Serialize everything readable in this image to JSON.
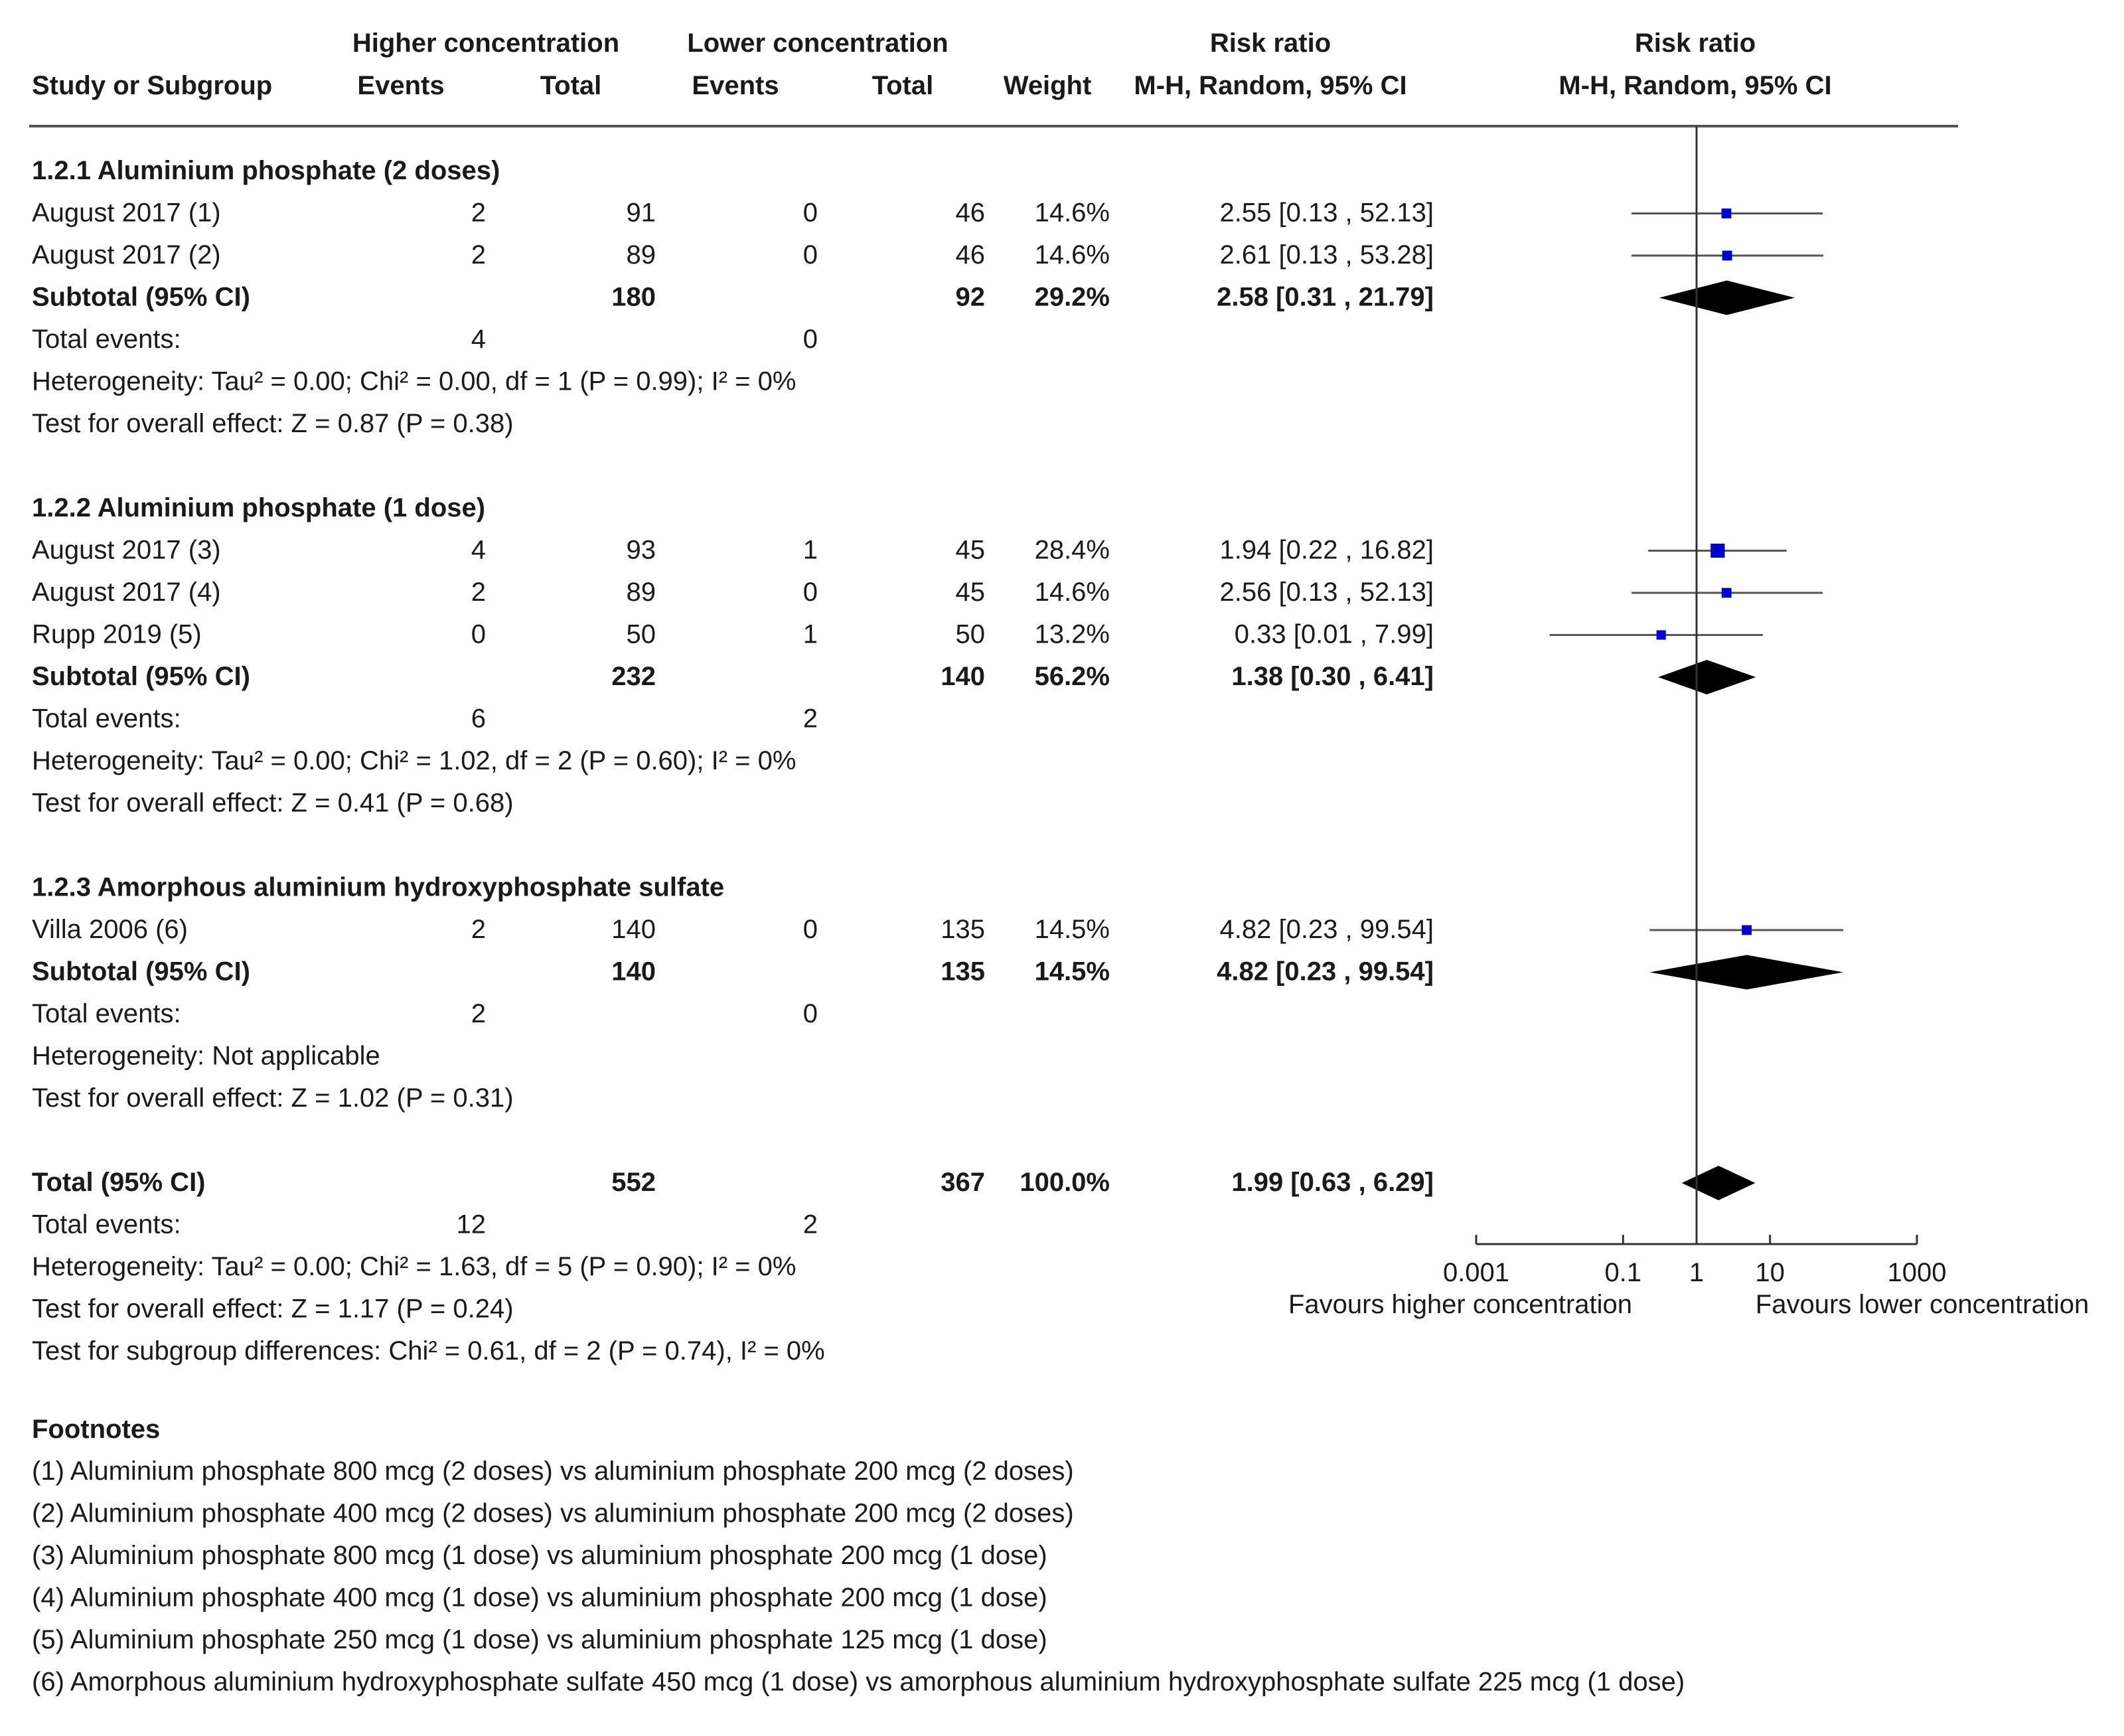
{
  "headers": {
    "study": "Study or Subgroup",
    "group1": "Higher concentration",
    "group2": "Lower concentration",
    "events": "Events",
    "total": "Total",
    "weight": "Weight",
    "rr": "Risk ratio",
    "method": "M-H, Random, 95% CI"
  },
  "rows": [
    {
      "kind": "heading",
      "label": "1.2.1 Aluminium phosphate (2 doses)"
    },
    {
      "kind": "study",
      "label": "August 2017 (1)",
      "e1": "2",
      "t1": "91",
      "e2": "0",
      "t2": "46",
      "weight": "14.6%",
      "ci": "2.55 [0.13 , 52.13]",
      "est": 2.55,
      "lo": 0.13,
      "hi": 52.13,
      "w": 14.6
    },
    {
      "kind": "study",
      "label": "August 2017 (2)",
      "e1": "2",
      "t1": "89",
      "e2": "0",
      "t2": "46",
      "weight": "14.6%",
      "ci": "2.61 [0.13 , 53.28]",
      "est": 2.61,
      "lo": 0.13,
      "hi": 53.28,
      "w": 14.6
    },
    {
      "kind": "subtotal",
      "label": "Subtotal (95% CI)",
      "t1": "180",
      "t2": "92",
      "weight": "29.2%",
      "ci": "2.58 [0.31 , 21.79]",
      "est": 2.58,
      "lo": 0.31,
      "hi": 21.79
    },
    {
      "kind": "events",
      "label": "Total events:",
      "e1": "4",
      "e2": "0"
    },
    {
      "kind": "text",
      "label": "Heterogeneity: Tau² = 0.00; Chi² = 0.00, df = 1 (P = 0.99); I² = 0%"
    },
    {
      "kind": "text",
      "label": "Test for overall effect: Z = 0.87 (P = 0.38)"
    },
    {
      "kind": "blank"
    },
    {
      "kind": "heading",
      "label": "1.2.2 Aluminium phosphate (1 dose)"
    },
    {
      "kind": "study",
      "label": "August 2017 (3)",
      "e1": "4",
      "t1": "93",
      "e2": "1",
      "t2": "45",
      "weight": "28.4%",
      "ci": "1.94 [0.22 , 16.82]",
      "est": 1.94,
      "lo": 0.22,
      "hi": 16.82,
      "w": 28.4
    },
    {
      "kind": "study",
      "label": "August 2017 (4)",
      "e1": "2",
      "t1": "89",
      "e2": "0",
      "t2": "45",
      "weight": "14.6%",
      "ci": "2.56 [0.13 , 52.13]",
      "est": 2.56,
      "lo": 0.13,
      "hi": 52.13,
      "w": 14.6
    },
    {
      "kind": "study",
      "label": "Rupp 2019 (5)",
      "e1": "0",
      "t1": "50",
      "e2": "1",
      "t2": "50",
      "weight": "13.2%",
      "ci": "0.33 [0.01 , 7.99]",
      "est": 0.33,
      "lo": 0.01,
      "hi": 7.99,
      "w": 13.2
    },
    {
      "kind": "subtotal",
      "label": "Subtotal (95% CI)",
      "t1": "232",
      "t2": "140",
      "weight": "56.2%",
      "ci": "1.38 [0.30 , 6.41]",
      "est": 1.38,
      "lo": 0.3,
      "hi": 6.41
    },
    {
      "kind": "events",
      "label": "Total events:",
      "e1": "6",
      "e2": "2"
    },
    {
      "kind": "text",
      "label": "Heterogeneity: Tau² = 0.00; Chi² = 1.02, df = 2 (P = 0.60); I² = 0%"
    },
    {
      "kind": "text",
      "label": "Test for overall effect: Z = 0.41 (P = 0.68)"
    },
    {
      "kind": "blank"
    },
    {
      "kind": "heading",
      "label": "1.2.3 Amorphous aluminium hydroxyphosphate sulfate"
    },
    {
      "kind": "study",
      "label": "Villa 2006 (6)",
      "e1": "2",
      "t1": "140",
      "e2": "0",
      "t2": "135",
      "weight": "14.5%",
      "ci": "4.82 [0.23 , 99.54]",
      "est": 4.82,
      "lo": 0.23,
      "hi": 99.54,
      "w": 14.5
    },
    {
      "kind": "subtotal",
      "label": "Subtotal (95% CI)",
      "t1": "140",
      "t2": "135",
      "weight": "14.5%",
      "ci": "4.82 [0.23 , 99.54]",
      "est": 4.82,
      "lo": 0.23,
      "hi": 99.54
    },
    {
      "kind": "events",
      "label": "Total events:",
      "e1": "2",
      "e2": "0"
    },
    {
      "kind": "text",
      "label": "Heterogeneity: Not applicable"
    },
    {
      "kind": "text",
      "label": "Test for overall effect: Z = 1.02 (P = 0.31)"
    },
    {
      "kind": "blank"
    },
    {
      "kind": "subtotal",
      "label": "Total (95% CI)",
      "t1": "552",
      "t2": "367",
      "weight": "100.0%",
      "ci": "1.99 [0.63 , 6.29]",
      "est": 1.99,
      "lo": 0.63,
      "hi": 6.29
    },
    {
      "kind": "events",
      "label": "Total events:",
      "e1": "12",
      "e2": "2"
    },
    {
      "kind": "text",
      "label": "Heterogeneity: Tau² = 0.00; Chi² = 1.63, df = 5 (P = 0.90); I² = 0%"
    },
    {
      "kind": "text",
      "label": "Test for overall effect: Z = 1.17 (P = 0.24)"
    },
    {
      "kind": "text",
      "label": "Test for subgroup differences: Chi² = 0.61, df = 2 (P = 0.74), I² = 0%"
    }
  ],
  "footnotes_title": "Footnotes",
  "footnotes": [
    "(1) Aluminium phosphate 800 mcg (2 doses) vs aluminium phosphate 200 mcg (2 doses)",
    "(2) Aluminium phosphate 400 mcg (2 doses) vs aluminium phosphate 200 mcg (2 doses)",
    "(3) Aluminium phosphate 800 mcg (1 dose) vs aluminium phosphate 200 mcg (1 dose)",
    "(4) Aluminium phosphate 400 mcg (1 dose) vs aluminium phosphate 200 mcg (1 dose)",
    "(5) Aluminium phosphate 250 mcg (1 dose) vs aluminium phosphate 125 mcg (1 dose)",
    "(6) Amorphous aluminium hydroxyphosphate sulfate 450 mcg (1 dose) vs amorphous aluminium hydroxyphosphate sulfate 225 mcg (1 dose)"
  ],
  "chart_data": {
    "type": "forest",
    "title": "Risk ratio",
    "method": "M-H, Random, 95% CI",
    "scale": "log",
    "xlim": [
      0.001,
      1000
    ],
    "ticks": [
      0.001,
      0.1,
      1,
      10,
      1000
    ],
    "tick_labels": [
      "0.001",
      "0.1",
      "1",
      "10",
      "1000"
    ],
    "null_value": 1,
    "favours_left": "Favours higher concentration",
    "favours_right": "Favours lower concentration",
    "colors": {
      "square": "#0000cc",
      "line": "#555555",
      "diamond": "#000000",
      "text": "#1a1a1a"
    }
  }
}
